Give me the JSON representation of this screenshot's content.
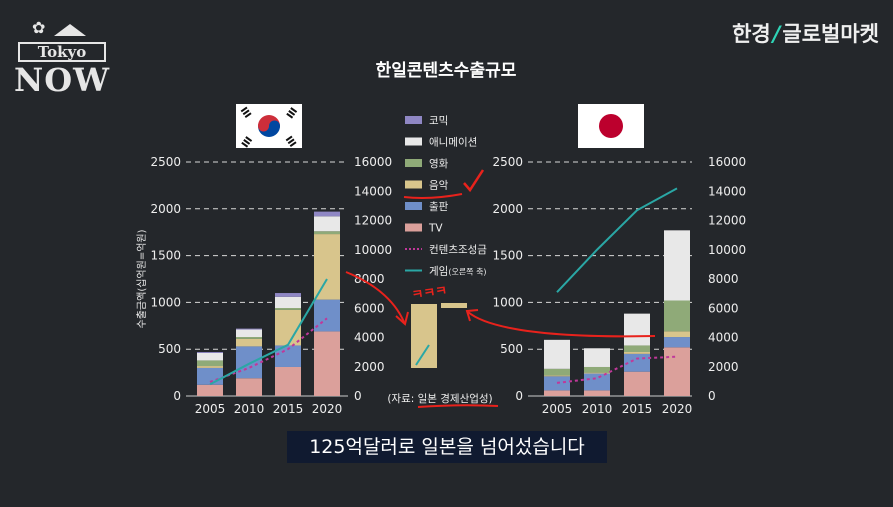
{
  "brand": {
    "left": "한경",
    "right": "글로벌마켓"
  },
  "logo": {
    "line1": "Tokyo",
    "line2": "NOW"
  },
  "caption": "125억달러로 일본을 넘어섰습니다",
  "colors": {
    "comic": "#8f87c4",
    "animation": "#e8e8e8",
    "film": "#8faa78",
    "music": "#d8c58c",
    "publishing": "#6f8fc9",
    "tv": "#dba09b",
    "fund": "#c0389a",
    "game": "#2aa7a5",
    "annotation": "#e8221c"
  },
  "chart_data": [
    {
      "type": "bar",
      "title": "한일콘텐츠수출규모",
      "country": "korea",
      "categories": [
        "2005",
        "2010",
        "2015",
        "2020"
      ],
      "ylabel": "수출금액(십억원=억원)",
      "ylim": [
        0,
        2500
      ],
      "y2lim": [
        0,
        16000
      ],
      "yticks": [
        "0",
        "500",
        "1000",
        "1500",
        "2000",
        "2500"
      ],
      "y2ticks": [
        "0",
        "2000",
        "4000",
        "6000",
        "8000",
        "10000",
        "12000",
        "14000",
        "16000"
      ],
      "grid": true,
      "series": [
        {
          "name": "TV",
          "values": [
            120,
            190,
            310,
            690
          ]
        },
        {
          "name": "출판",
          "values": [
            180,
            340,
            230,
            340
          ]
        },
        {
          "name": "음악",
          "values": [
            20,
            80,
            380,
            700
          ]
        },
        {
          "name": "영화",
          "values": [
            60,
            20,
            20,
            30
          ]
        },
        {
          "name": "애니메이션",
          "values": [
            80,
            80,
            120,
            160
          ]
        },
        {
          "name": "코믹",
          "values": [
            10,
            10,
            40,
            50
          ]
        }
      ],
      "lines": [
        {
          "name": "컨텐츠조성금",
          "axis": "left",
          "values": [
            150,
            300,
            500,
            830
          ]
        },
        {
          "name": "게임",
          "axis": "right",
          "values": [
            800,
            2200,
            3500,
            8000
          ]
        }
      ]
    },
    {
      "type": "bar",
      "title": "",
      "country": "japan",
      "categories": [
        "2005",
        "2010",
        "2015",
        "2020"
      ],
      "ylim": [
        0,
        2500
      ],
      "y2lim": [
        0,
        16000
      ],
      "yticks": [
        "0",
        "500",
        "1000",
        "1500",
        "2000",
        "2500"
      ],
      "y2ticks": [
        "0",
        "2000",
        "4000",
        "6000",
        "8000",
        "10000",
        "12000",
        "14000",
        "16000"
      ],
      "grid": true,
      "series": [
        {
          "name": "TV",
          "values": [
            60,
            60,
            260,
            520
          ]
        },
        {
          "name": "출판",
          "values": [
            150,
            180,
            190,
            110
          ]
        },
        {
          "name": "음악",
          "values": [
            10,
            10,
            20,
            60
          ]
        },
        {
          "name": "영화",
          "values": [
            70,
            60,
            70,
            330
          ]
        },
        {
          "name": "애니메이션",
          "values": [
            310,
            200,
            340,
            750
          ]
        },
        {
          "name": "코믹",
          "values": [
            0,
            0,
            0,
            0
          ]
        }
      ],
      "lines": [
        {
          "name": "컨텐츠조성금",
          "axis": "left",
          "values": [
            140,
            190,
            400,
            420
          ]
        },
        {
          "name": "게임",
          "axis": "right",
          "values": [
            7100,
            10000,
            12700,
            14200
          ]
        }
      ]
    }
  ],
  "legend": [
    {
      "key": "comic",
      "label": "코믹",
      "type": "box"
    },
    {
      "key": "animation",
      "label": "애니메이션",
      "type": "box"
    },
    {
      "key": "film",
      "label": "영화",
      "type": "box"
    },
    {
      "key": "music",
      "label": "음악",
      "type": "box"
    },
    {
      "key": "publishing",
      "label": "출판",
      "type": "box"
    },
    {
      "key": "tv",
      "label": "TV",
      "type": "box"
    },
    {
      "key": "fund",
      "label": "컨텐츠조성금",
      "type": "dash"
    },
    {
      "key": "game",
      "label": "게임",
      "suffix": "(오른쪽 축)",
      "type": "line"
    }
  ],
  "source": "(자료: 일본 경제산업성)",
  "annotation": {
    "text": "ㅋㅋㅋ"
  }
}
